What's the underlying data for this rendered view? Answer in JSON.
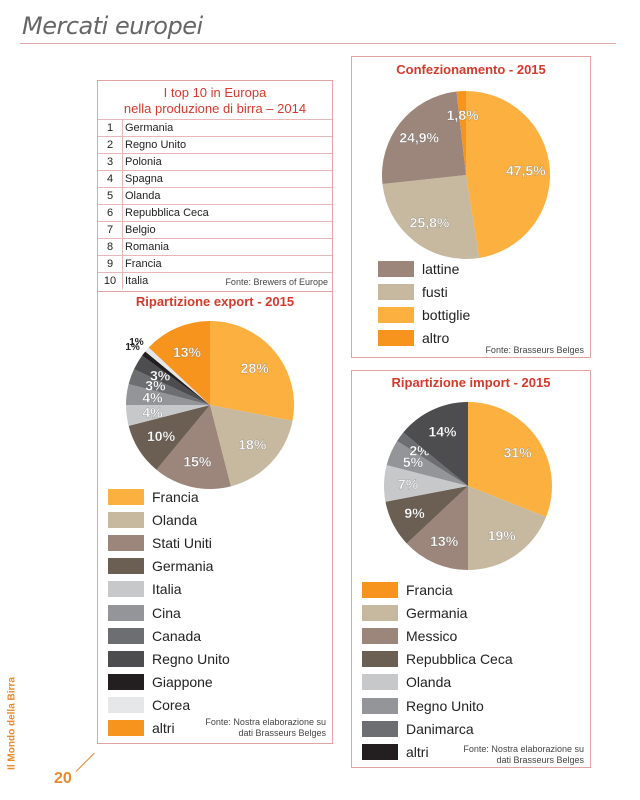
{
  "header": {
    "title": "Mercati europei"
  },
  "top10": {
    "title_line1": "I top 10 in Europa",
    "title_line2": "nella produzione di birra – 2014",
    "rows": [
      {
        "rank": "1",
        "country": "Germania"
      },
      {
        "rank": "2",
        "country": "Regno Unito"
      },
      {
        "rank": "3",
        "country": "Polonia"
      },
      {
        "rank": "4",
        "country": "Spagna"
      },
      {
        "rank": "5",
        "country": "Olanda"
      },
      {
        "rank": "6",
        "country": "Repubblica Ceca"
      },
      {
        "rank": "7",
        "country": "Belgio"
      },
      {
        "rank": "8",
        "country": "Romania"
      },
      {
        "rank": "9",
        "country": "Francia"
      },
      {
        "rank": "10",
        "country": "Italia"
      }
    ],
    "source": "Fonte: Brewers of Europe"
  },
  "footer": {
    "side_text": "Il Mondo della Birra",
    "page_number": "20"
  },
  "chart_data": [
    {
      "type": "pie",
      "title": "Confezionamento - 2015",
      "source": "Fonte: Brasseurs Belges",
      "slices": [
        {
          "name": "bottiglie",
          "value": 47.5,
          "label": "47,5%",
          "color": "#fbb040"
        },
        {
          "name": "fusti",
          "value": 25.8,
          "label": "25,8%",
          "color": "#c7b9a0"
        },
        {
          "name": "lattine",
          "value": 24.9,
          "label": "24,9%",
          "color": "#9c857a"
        },
        {
          "name": "altro",
          "value": 1.8,
          "label": "1,8%",
          "color": "#f7941d"
        }
      ],
      "legend": [
        {
          "label": "lattine",
          "color": "#9c857a"
        },
        {
          "label": "fusti",
          "color": "#c7b9a0"
        },
        {
          "label": "bottiglie",
          "color": "#fbb040"
        },
        {
          "label": "altro",
          "color": "#f7941d"
        }
      ]
    },
    {
      "type": "pie",
      "title": "Ripartizione export - 2015",
      "source_line1": "Fonte: Nostra elaborazione su",
      "source_line2": "dati Brasseurs Belges",
      "slices": [
        {
          "name": "Francia",
          "value": 28,
          "label": "28%",
          "color": "#fbb040"
        },
        {
          "name": "Olanda",
          "value": 18,
          "label": "18%",
          "color": "#c7b9a0"
        },
        {
          "name": "Stati Uniti",
          "value": 15,
          "label": "15%",
          "color": "#9c857a"
        },
        {
          "name": "Germania",
          "value": 10,
          "label": "10%",
          "color": "#6b5e52"
        },
        {
          "name": "Italia",
          "value": 4,
          "label": "4%",
          "color": "#c7c8ca"
        },
        {
          "name": "Cina",
          "value": 4,
          "label": "4%",
          "color": "#939598"
        },
        {
          "name": "Canada",
          "value": 3,
          "label": "3%",
          "color": "#6d6e71"
        },
        {
          "name": "Regno Unito",
          "value": 3,
          "label": "3%",
          "color": "#4d4d4f"
        },
        {
          "name": "Giappone",
          "value": 1,
          "label": "1%",
          "color": "#231f20"
        },
        {
          "name": "Corea",
          "value": 1,
          "label": "1%",
          "color": "#e6e7e8"
        },
        {
          "name": "altri",
          "value": 13,
          "label": "13%",
          "color": "#f7941d"
        }
      ]
    },
    {
      "type": "pie",
      "title": "Ripartizione import - 2015",
      "source_line1": "Fonte: Nostra elaborazione su",
      "source_line2": "dati Brasseurs Belges",
      "slices": [
        {
          "name": "Francia",
          "value": 31,
          "label": "31%",
          "color": "#fbb040"
        },
        {
          "name": "Germania",
          "value": 19,
          "label": "19%",
          "color": "#c7b9a0"
        },
        {
          "name": "Messico",
          "value": 13,
          "label": "13%",
          "color": "#9c857a"
        },
        {
          "name": "Repubblica Ceca",
          "value": 9,
          "label": "9%",
          "color": "#6b5e52"
        },
        {
          "name": "Olanda",
          "value": 7,
          "label": "7%",
          "color": "#c7c8ca"
        },
        {
          "name": "Regno Unito",
          "value": 5,
          "label": "5%",
          "color": "#939598"
        },
        {
          "name": "Danimarca",
          "value": 2,
          "label": "2%",
          "color": "#6d6e71"
        },
        {
          "name": "altri",
          "value": 14,
          "label": "14%",
          "color": "#4d4d4f"
        }
      ],
      "legend": [
        {
          "label": "Francia",
          "color": "#f7941d"
        },
        {
          "label": "Germania",
          "color": "#c7b9a0"
        },
        {
          "label": "Messico",
          "color": "#9c857a"
        },
        {
          "label": "Repubblica Ceca",
          "color": "#6b5e52"
        },
        {
          "label": "Olanda",
          "color": "#c7c8ca"
        },
        {
          "label": "Regno Unito",
          "color": "#939598"
        },
        {
          "label": "Danimarca",
          "color": "#6d6e71"
        },
        {
          "label": "altri",
          "color": "#231f20"
        }
      ]
    }
  ]
}
